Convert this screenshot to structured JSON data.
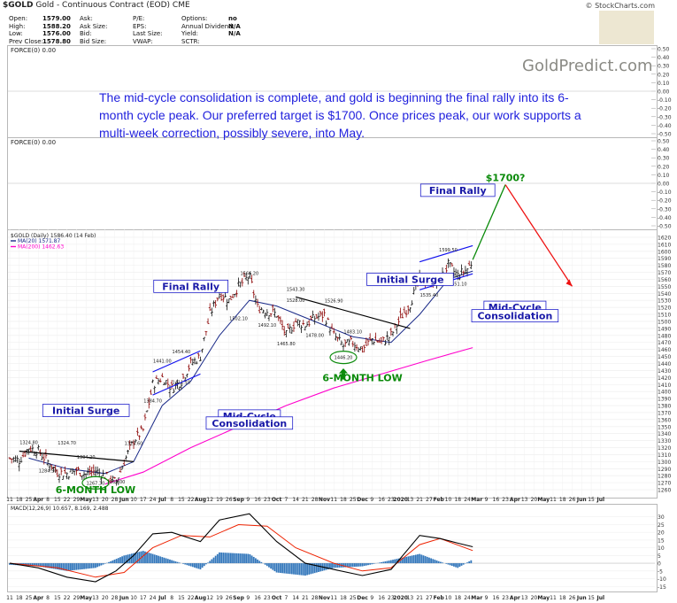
{
  "header": {
    "symbol": "$GOLD",
    "description": "Gold - Continuous Contract (EOD) CME",
    "copyright": "© StockCharts.com"
  },
  "quote_table": [
    {
      "label": "Open:",
      "value": "1579.00"
    },
    {
      "label": "High:",
      "value": "1588.20"
    },
    {
      "label": "Low:",
      "value": "1576.00"
    },
    {
      "label": "Prev Close:",
      "value": "1578.80"
    },
    {
      "label": "Ask:",
      "value": ""
    },
    {
      "label": "Ask Size:",
      "value": ""
    },
    {
      "label": "Bid:",
      "value": ""
    },
    {
      "label": "Bid Size:",
      "value": ""
    },
    {
      "label": "P/E:",
      "value": ""
    },
    {
      "label": "EPS:",
      "value": ""
    },
    {
      "label": "Last Size:",
      "value": ""
    },
    {
      "label": "VWAP:",
      "value": ""
    },
    {
      "label": "Options:",
      "value": "no"
    },
    {
      "label": "Annual Dividend:",
      "value": "N/A"
    },
    {
      "label": "Yield:",
      "value": "N/A"
    },
    {
      "label": "SCTR:",
      "value": ""
    }
  ],
  "force_labels": [
    "FORCE(0) 0.00",
    "FORCE(0) 0.00"
  ],
  "watermark": "GoldPredict.com",
  "headline": "The mid-cycle consolidation is complete, and gold is beginning the final rally into its 6-month cycle peak. Our preferred target is $1700. Once prices peak, our work supports a multi-week correction, possibly severe, into May.",
  "colors": {
    "price_bars": "#8b0000",
    "ma20": "#1a2a88",
    "ma200": "#ff00cc",
    "macd_line": "#000000",
    "signal_line": "#ee2200",
    "histogram": "#3377bb",
    "headline_text": "#2222dd",
    "channel_lines": "#1010ee",
    "rally_projection": "#0a8a0a",
    "correction_projection": "#ee1111"
  },
  "chart_data": [
    {
      "type": "line",
      "title": "$GOLD (Daily) 1586.40 (14 Feb)",
      "legend": [
        {
          "name": "MA(20) 1571.87",
          "color": "#1a2a88"
        },
        {
          "name": "MA(200) 1462.63",
          "color": "#ff00cc"
        }
      ],
      "ylim": [
        1255,
        1625
      ],
      "y_ticks": [
        1260,
        1270,
        1280,
        1290,
        1300,
        1310,
        1320,
        1330,
        1340,
        1350,
        1360,
        1370,
        1380,
        1390,
        1400,
        1410,
        1420,
        1430,
        1440,
        1450,
        1460,
        1470,
        1480,
        1490,
        1500,
        1510,
        1520,
        1530,
        1540,
        1550,
        1560,
        1570,
        1580,
        1590,
        1600,
        1610,
        1620
      ],
      "x_ticks": [
        "11",
        "18",
        "25",
        "Apr",
        "8",
        "15",
        "22",
        "29",
        "May",
        "13",
        "20",
        "28",
        "Jun",
        "10",
        "17",
        "24",
        "Jul",
        "8",
        "15",
        "22",
        "Aug",
        "12",
        "19",
        "26",
        "Sep",
        "9",
        "16",
        "23",
        "Oct",
        "7",
        "14",
        "21",
        "28",
        "Nov",
        "11",
        "18",
        "25",
        "Dec",
        "9",
        "16",
        "23",
        "2020",
        "13",
        "21",
        "27",
        "Feb",
        "10",
        "18",
        "24",
        "Mar",
        "9",
        "16",
        "23",
        "Apr",
        "13",
        "20",
        "May",
        "11",
        "18",
        "26",
        "Jun",
        "15",
        "Jul"
      ],
      "price_path": [
        {
          "x": "2019-03-11",
          "y": 1305
        },
        {
          "x": "2019-03-18",
          "y": 1302
        },
        {
          "x": "2019-03-25",
          "y": 1320
        },
        {
          "x": "2019-04-01",
          "y": 1315
        },
        {
          "x": "2019-04-08",
          "y": 1300
        },
        {
          "x": "2019-04-15",
          "y": 1285
        },
        {
          "x": "2019-04-22",
          "y": 1283
        },
        {
          "x": "2019-04-29",
          "y": 1288
        },
        {
          "x": "2019-05-06",
          "y": 1282
        },
        {
          "x": "2019-05-13",
          "y": 1287
        },
        {
          "x": "2019-05-20",
          "y": 1280
        },
        {
          "x": "2019-05-28",
          "y": 1270
        },
        {
          "x": "2019-06-03",
          "y": 1300
        },
        {
          "x": "2019-06-10",
          "y": 1330
        },
        {
          "x": "2019-06-17",
          "y": 1345
        },
        {
          "x": "2019-06-24",
          "y": 1410
        },
        {
          "x": "2019-07-01",
          "y": 1420
        },
        {
          "x": "2019-07-08",
          "y": 1405
        },
        {
          "x": "2019-07-15",
          "y": 1415
        },
        {
          "x": "2019-07-22",
          "y": 1440
        },
        {
          "x": "2019-07-29",
          "y": 1450
        },
        {
          "x": "2019-08-05",
          "y": 1510
        },
        {
          "x": "2019-08-12",
          "y": 1540
        },
        {
          "x": "2019-08-19",
          "y": 1530
        },
        {
          "x": "2019-08-26",
          "y": 1550
        },
        {
          "x": "2019-09-03",
          "y": 1565
        },
        {
          "x": "2019-09-09",
          "y": 1520
        },
        {
          "x": "2019-09-16",
          "y": 1515
        },
        {
          "x": "2019-09-23",
          "y": 1510
        },
        {
          "x": "2019-09-30",
          "y": 1480
        },
        {
          "x": "2019-10-07",
          "y": 1500
        },
        {
          "x": "2019-10-14",
          "y": 1495
        },
        {
          "x": "2019-10-21",
          "y": 1505
        },
        {
          "x": "2019-10-28",
          "y": 1510
        },
        {
          "x": "2019-11-04",
          "y": 1480
        },
        {
          "x": "2019-11-11",
          "y": 1465
        },
        {
          "x": "2019-11-18",
          "y": 1470
        },
        {
          "x": "2019-11-25",
          "y": 1460
        },
        {
          "x": "2019-12-02",
          "y": 1475
        },
        {
          "x": "2019-12-09",
          "y": 1470
        },
        {
          "x": "2019-12-16",
          "y": 1480
        },
        {
          "x": "2019-12-23",
          "y": 1505
        },
        {
          "x": "2019-12-30",
          "y": 1525
        },
        {
          "x": "2020-01-06",
          "y": 1560
        },
        {
          "x": "2020-01-13",
          "y": 1555
        },
        {
          "x": "2020-01-21",
          "y": 1560
        },
        {
          "x": "2020-01-27",
          "y": 1580
        },
        {
          "x": "2020-02-03",
          "y": 1565
        },
        {
          "x": "2020-02-10",
          "y": 1575
        },
        {
          "x": "2020-02-14",
          "y": 1586.4
        }
      ],
      "ma20_path": [
        {
          "x": "2019-03-25",
          "y": 1305
        },
        {
          "x": "2019-04-22",
          "y": 1290
        },
        {
          "x": "2019-05-20",
          "y": 1283
        },
        {
          "x": "2019-06-10",
          "y": 1300
        },
        {
          "x": "2019-07-01",
          "y": 1380
        },
        {
          "x": "2019-07-22",
          "y": 1415
        },
        {
          "x": "2019-08-12",
          "y": 1480
        },
        {
          "x": "2019-09-03",
          "y": 1530
        },
        {
          "x": "2019-09-23",
          "y": 1522
        },
        {
          "x": "2019-10-21",
          "y": 1500
        },
        {
          "x": "2019-11-18",
          "y": 1478
        },
        {
          "x": "2019-12-16",
          "y": 1470
        },
        {
          "x": "2020-01-06",
          "y": 1510
        },
        {
          "x": "2020-01-27",
          "y": 1560
        },
        {
          "x": "2020-02-14",
          "y": 1571.87
        }
      ],
      "ma200_path": [
        {
          "x": "2019-05-20",
          "y": 1268
        },
        {
          "x": "2019-06-17",
          "y": 1285
        },
        {
          "x": "2019-07-22",
          "y": 1320
        },
        {
          "x": "2019-08-26",
          "y": 1350
        },
        {
          "x": "2019-09-30",
          "y": 1380
        },
        {
          "x": "2019-11-04",
          "y": 1405
        },
        {
          "x": "2019-12-09",
          "y": 1425
        },
        {
          "x": "2020-01-13",
          "y": 1445
        },
        {
          "x": "2020-02-14",
          "y": 1462.63
        }
      ],
      "value_labels": [
        {
          "x": "2019-03-25",
          "y": 1324.8,
          "text": "1324.80"
        },
        {
          "x": "2019-04-22",
          "y": 1324.7,
          "text": "1324.70"
        },
        {
          "x": "2019-04-08",
          "y": 1284.9,
          "text": "1284.90"
        },
        {
          "x": "2019-05-06",
          "y": 1304.2,
          "text": "1304.20"
        },
        {
          "x": "2019-05-13",
          "y": 1267.3,
          "text": "1267.30"
        },
        {
          "x": "2019-05-28",
          "y": 1269.0,
          "text": "1269.00"
        },
        {
          "x": "2019-06-10",
          "y": 1323.6,
          "text": "1323.60"
        },
        {
          "x": "2019-06-24",
          "y": 1384.7,
          "text": "1384.70"
        },
        {
          "x": "2019-07-01",
          "y": 1441.0,
          "text": "1441.00"
        },
        {
          "x": "2019-07-15",
          "y": 1454.4,
          "text": "1454.40"
        },
        {
          "x": "2019-07-15",
          "y": 1411.1,
          "text": "1411.10"
        },
        {
          "x": "2019-08-12",
          "y": 1546.1,
          "text": "1546.10"
        },
        {
          "x": "2019-08-26",
          "y": 1502.1,
          "text": "1502.10"
        },
        {
          "x": "2019-09-03",
          "y": 1566.2,
          "text": "1566.20"
        },
        {
          "x": "2019-09-16",
          "y": 1492.1,
          "text": "1492.10"
        },
        {
          "x": "2019-10-07",
          "y": 1543.3,
          "text": "1543.30"
        },
        {
          "x": "2019-10-07",
          "y": 1528.0,
          "text": "1528.00"
        },
        {
          "x": "2019-09-30",
          "y": 1465.8,
          "text": "1465.80"
        },
        {
          "x": "2019-10-21",
          "y": 1478.0,
          "text": "1478.00"
        },
        {
          "x": "2019-11-04",
          "y": 1526.9,
          "text": "1526.90"
        },
        {
          "x": "2019-11-18",
          "y": 1483.1,
          "text": "1483.10"
        },
        {
          "x": "2019-11-11",
          "y": 1446.2,
          "text": "1446.20"
        },
        {
          "x": "2020-01-27",
          "y": 1599.5,
          "text": "1599.50"
        },
        {
          "x": "2020-01-13",
          "y": 1535.4,
          "text": "1535.40"
        },
        {
          "x": "2020-02-03",
          "y": 1551.1,
          "text": "1551.10"
        }
      ],
      "annotations": [
        {
          "text": "Initial Surge",
          "kind": "box",
          "x": "2019-05-06",
          "y": 1368
        },
        {
          "text": "Final Rally",
          "kind": "box",
          "x": "2019-07-22",
          "y": 1545
        },
        {
          "text": "Mid-Cycle",
          "kind": "box",
          "x": "2019-09-03",
          "y": 1360
        },
        {
          "text": "Consolidation",
          "kind": "box",
          "x": "2019-09-03",
          "y": 1350
        },
        {
          "text": "Initial Surge",
          "kind": "box",
          "x": "2019-12-30",
          "y": 1555
        },
        {
          "text": "Final Rally",
          "kind": "box",
          "x": "2020-02-03",
          "y": 1682
        },
        {
          "text": "Mid-Cycle",
          "kind": "box",
          "x": "2020-03-16",
          "y": 1515
        },
        {
          "text": "Consolidation",
          "kind": "box",
          "x": "2020-03-16",
          "y": 1503
        },
        {
          "text": "$1700?",
          "kind": "green",
          "x": "2020-03-09",
          "y": 1700
        },
        {
          "text": "6-MONTH LOW",
          "kind": "green",
          "x": "2019-11-25",
          "y": 1415
        },
        {
          "text": "6-MONTH LOW",
          "kind": "green",
          "x": "2019-05-13",
          "y": 1255
        }
      ],
      "channels": [
        {
          "from": {
            "x": "2019-03-18",
            "y": 1315
          },
          "to": {
            "x": "2019-06-10",
            "y": 1300
          },
          "color": "#000000"
        },
        {
          "from": {
            "x": "2019-10-07",
            "y": 1535
          },
          "to": {
            "x": "2019-12-30",
            "y": 1490
          },
          "color": "#000000"
        },
        {
          "from": {
            "x": "2019-06-24",
            "y": 1428
          },
          "to": {
            "x": "2019-07-29",
            "y": 1458
          },
          "color": "#1010ee"
        },
        {
          "from": {
            "x": "2019-06-24",
            "y": 1395
          },
          "to": {
            "x": "2019-07-29",
            "y": 1425
          },
          "color": "#1010ee"
        },
        {
          "from": {
            "x": "2020-01-06",
            "y": 1585
          },
          "to": {
            "x": "2020-02-14",
            "y": 1608
          },
          "color": "#1010ee"
        },
        {
          "from": {
            "x": "2020-01-06",
            "y": 1545
          },
          "to": {
            "x": "2020-02-14",
            "y": 1568
          },
          "color": "#1010ee"
        }
      ],
      "projection": [
        {
          "x": "2020-02-14",
          "y": 1588
        },
        {
          "x": "2020-03-09",
          "y": 1695
        },
        {
          "x": "2020-04-27",
          "y": 1550
        }
      ]
    },
    {
      "type": "line",
      "title": "MACD(12,26,9) 10.657, 8.169, 2.488",
      "ylim": [
        -16,
        35
      ],
      "y_ticks": [
        -15,
        -10,
        -5,
        0,
        5,
        10,
        15,
        20,
        25,
        30
      ],
      "series": [
        {
          "name": "MACD",
          "values": [
            {
              "x": "2019-03-11",
              "y": 0
            },
            {
              "x": "2019-04-01",
              "y": -3
            },
            {
              "x": "2019-04-22",
              "y": -9
            },
            {
              "x": "2019-05-13",
              "y": -12
            },
            {
              "x": "2019-05-28",
              "y": -5
            },
            {
              "x": "2019-06-10",
              "y": 5
            },
            {
              "x": "2019-06-24",
              "y": 19
            },
            {
              "x": "2019-07-08",
              "y": 20
            },
            {
              "x": "2019-07-29",
              "y": 14
            },
            {
              "x": "2019-08-12",
              "y": 28
            },
            {
              "x": "2019-09-03",
              "y": 32
            },
            {
              "x": "2019-09-23",
              "y": 14
            },
            {
              "x": "2019-10-14",
              "y": 0
            },
            {
              "x": "2019-11-04",
              "y": -4
            },
            {
              "x": "2019-11-25",
              "y": -8
            },
            {
              "x": "2019-12-16",
              "y": -4
            },
            {
              "x": "2020-01-06",
              "y": 18
            },
            {
              "x": "2020-01-21",
              "y": 16
            },
            {
              "x": "2020-02-03",
              "y": 13
            },
            {
              "x": "2020-02-14",
              "y": 10.657
            }
          ]
        },
        {
          "name": "Signal",
          "values": [
            {
              "x": "2019-03-11",
              "y": 0
            },
            {
              "x": "2019-04-15",
              "y": -3
            },
            {
              "x": "2019-05-13",
              "y": -9
            },
            {
              "x": "2019-06-03",
              "y": -6
            },
            {
              "x": "2019-06-24",
              "y": 10
            },
            {
              "x": "2019-07-15",
              "y": 18
            },
            {
              "x": "2019-08-05",
              "y": 17
            },
            {
              "x": "2019-08-26",
              "y": 25
            },
            {
              "x": "2019-09-16",
              "y": 24
            },
            {
              "x": "2019-10-07",
              "y": 10
            },
            {
              "x": "2019-11-04",
              "y": 0
            },
            {
              "x": "2019-11-25",
              "y": -5
            },
            {
              "x": "2019-12-16",
              "y": -3
            },
            {
              "x": "2020-01-06",
              "y": 12
            },
            {
              "x": "2020-01-21",
              "y": 16
            },
            {
              "x": "2020-02-14",
              "y": 8.169
            }
          ]
        },
        {
          "name": "Histogram",
          "values": [
            {
              "x": "2019-03-11",
              "y": -1
            },
            {
              "x": "2019-04-01",
              "y": -2
            },
            {
              "x": "2019-04-22",
              "y": -5
            },
            {
              "x": "2019-05-13",
              "y": -3
            },
            {
              "x": "2019-06-03",
              "y": 5
            },
            {
              "x": "2019-06-17",
              "y": 8
            },
            {
              "x": "2019-07-08",
              "y": 2
            },
            {
              "x": "2019-07-29",
              "y": -4
            },
            {
              "x": "2019-08-12",
              "y": 7
            },
            {
              "x": "2019-09-03",
              "y": 6
            },
            {
              "x": "2019-09-23",
              "y": -6
            },
            {
              "x": "2019-10-14",
              "y": -8
            },
            {
              "x": "2019-11-04",
              "y": -3
            },
            {
              "x": "2019-11-25",
              "y": -2
            },
            {
              "x": "2019-12-16",
              "y": 2
            },
            {
              "x": "2020-01-06",
              "y": 6
            },
            {
              "x": "2020-01-21",
              "y": 1
            },
            {
              "x": "2020-02-03",
              "y": -3
            },
            {
              "x": "2020-02-14",
              "y": 2.488
            }
          ]
        }
      ]
    }
  ]
}
